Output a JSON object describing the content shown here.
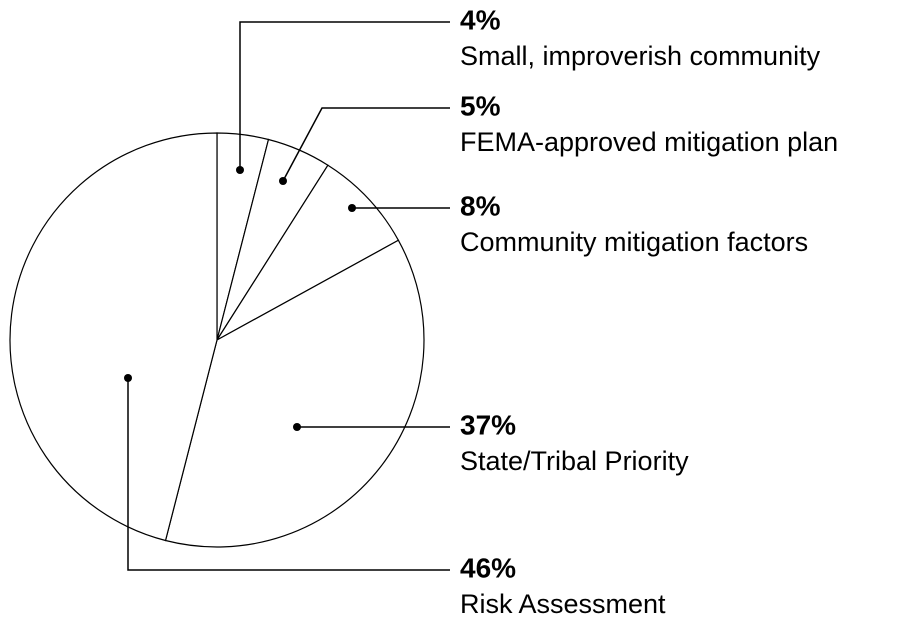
{
  "chart_data": {
    "type": "pie",
    "categories": [
      "Small, improverish community",
      "FEMA-approved mitigation plan",
      "Community mitigation factors",
      "State/Tribal Priority",
      "Risk Assessment"
    ],
    "values": [
      4,
      5,
      8,
      37,
      46
    ],
    "value_labels": [
      "4%",
      "5%",
      "8%",
      "37%",
      "46%"
    ],
    "color": "#ffffff"
  }
}
